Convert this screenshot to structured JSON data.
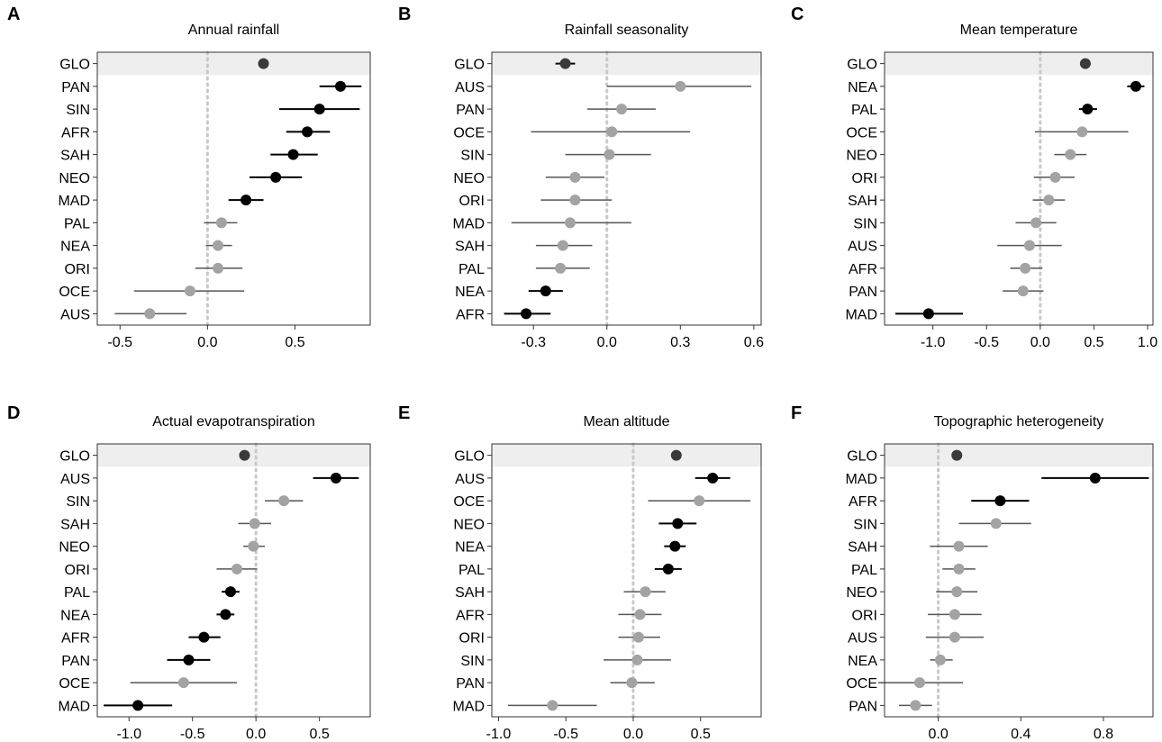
{
  "colors": {
    "significant": "#000000",
    "nonsignificant": "#a3a3a3",
    "global": "#3a3a3a",
    "band": "#eeeeee",
    "zero_line": "#c8c8c8"
  },
  "chart_data": [
    {
      "panel": "A",
      "type": "scatter",
      "title": "Annual rainfall",
      "xlabel": "",
      "ylabel": "",
      "xlim": [
        -0.63,
        0.93
      ],
      "xticks": [
        -0.5,
        0.0,
        0.5
      ],
      "xtick_labels": [
        "-0.5",
        "0.0",
        "0.5"
      ],
      "points": [
        {
          "label": "GLO",
          "est": 0.32,
          "lo": 0.29,
          "hi": 0.35,
          "sig": true,
          "global": true
        },
        {
          "label": "PAN",
          "est": 0.76,
          "lo": 0.64,
          "hi": 0.88,
          "sig": true
        },
        {
          "label": "SIN",
          "est": 0.64,
          "lo": 0.41,
          "hi": 0.87,
          "sig": true
        },
        {
          "label": "AFR",
          "est": 0.57,
          "lo": 0.45,
          "hi": 0.7,
          "sig": true
        },
        {
          "label": "SAH",
          "est": 0.49,
          "lo": 0.36,
          "hi": 0.63,
          "sig": true
        },
        {
          "label": "NEO",
          "est": 0.39,
          "lo": 0.24,
          "hi": 0.54,
          "sig": true
        },
        {
          "label": "MAD",
          "est": 0.22,
          "lo": 0.12,
          "hi": 0.32,
          "sig": true
        },
        {
          "label": "PAL",
          "est": 0.08,
          "lo": -0.02,
          "hi": 0.17,
          "sig": false
        },
        {
          "label": "NEA",
          "est": 0.06,
          "lo": -0.01,
          "hi": 0.14,
          "sig": false
        },
        {
          "label": "ORI",
          "est": 0.06,
          "lo": -0.07,
          "hi": 0.2,
          "sig": false
        },
        {
          "label": "OCE",
          "est": -0.1,
          "lo": -0.42,
          "hi": 0.21,
          "sig": false
        },
        {
          "label": "AUS",
          "est": -0.33,
          "lo": -0.53,
          "hi": -0.12,
          "sig": false
        }
      ]
    },
    {
      "panel": "B",
      "type": "scatter",
      "title": "Rainfall seasonality",
      "xlabel": "",
      "ylabel": "",
      "xlim": [
        -0.47,
        0.63
      ],
      "xticks": [
        -0.3,
        0.0,
        0.3,
        0.6
      ],
      "xtick_labels": [
        "-0.3",
        "0.0",
        "0.3",
        "0.6"
      ],
      "points": [
        {
          "label": "GLO",
          "est": -0.17,
          "lo": -0.21,
          "hi": -0.13,
          "sig": true,
          "global": true
        },
        {
          "label": "AUS",
          "est": 0.3,
          "lo": 0.0,
          "hi": 0.59,
          "sig": false
        },
        {
          "label": "PAN",
          "est": 0.06,
          "lo": -0.08,
          "hi": 0.2,
          "sig": false
        },
        {
          "label": "OCE",
          "est": 0.02,
          "lo": -0.31,
          "hi": 0.34,
          "sig": false
        },
        {
          "label": "SIN",
          "est": 0.01,
          "lo": -0.17,
          "hi": 0.18,
          "sig": false
        },
        {
          "label": "NEO",
          "est": -0.13,
          "lo": -0.25,
          "hi": -0.01,
          "sig": false
        },
        {
          "label": "ORI",
          "est": -0.13,
          "lo": -0.27,
          "hi": 0.02,
          "sig": false
        },
        {
          "label": "MAD",
          "est": -0.15,
          "lo": -0.39,
          "hi": 0.1,
          "sig": false
        },
        {
          "label": "SAH",
          "est": -0.18,
          "lo": -0.29,
          "hi": -0.06,
          "sig": false
        },
        {
          "label": "PAL",
          "est": -0.19,
          "lo": -0.29,
          "hi": -0.07,
          "sig": false
        },
        {
          "label": "NEA",
          "est": -0.25,
          "lo": -0.32,
          "hi": -0.18,
          "sig": true
        },
        {
          "label": "AFR",
          "est": -0.33,
          "lo": -0.42,
          "hi": -0.23,
          "sig": true
        }
      ]
    },
    {
      "panel": "C",
      "type": "scatter",
      "title": "Mean temperature",
      "xlabel": "",
      "ylabel": "",
      "xlim": [
        -1.45,
        1.05
      ],
      "xticks": [
        -1.0,
        -0.5,
        0.0,
        0.5,
        1.0
      ],
      "xtick_labels": [
        "-1.0",
        "-0.5",
        "0.0",
        "0.5",
        "1.0"
      ],
      "points": [
        {
          "label": "GLO",
          "est": 0.42,
          "lo": 0.38,
          "hi": 0.46,
          "sig": true,
          "global": true
        },
        {
          "label": "NEA",
          "est": 0.89,
          "lo": 0.81,
          "hi": 0.97,
          "sig": true
        },
        {
          "label": "PAL",
          "est": 0.44,
          "lo": 0.36,
          "hi": 0.53,
          "sig": true
        },
        {
          "label": "OCE",
          "est": 0.39,
          "lo": -0.05,
          "hi": 0.82,
          "sig": false
        },
        {
          "label": "NEO",
          "est": 0.28,
          "lo": 0.13,
          "hi": 0.43,
          "sig": false
        },
        {
          "label": "ORI",
          "est": 0.14,
          "lo": -0.06,
          "hi": 0.32,
          "sig": false
        },
        {
          "label": "SAH",
          "est": 0.08,
          "lo": -0.07,
          "hi": 0.23,
          "sig": false
        },
        {
          "label": "SIN",
          "est": -0.04,
          "lo": -0.23,
          "hi": 0.15,
          "sig": false
        },
        {
          "label": "AUS",
          "est": -0.1,
          "lo": -0.4,
          "hi": 0.2,
          "sig": false
        },
        {
          "label": "AFR",
          "est": -0.14,
          "lo": -0.28,
          "hi": 0.02,
          "sig": false
        },
        {
          "label": "PAN",
          "est": -0.16,
          "lo": -0.35,
          "hi": 0.03,
          "sig": false
        },
        {
          "label": "MAD",
          "est": -1.04,
          "lo": -1.35,
          "hi": -0.72,
          "sig": true
        }
      ]
    },
    {
      "panel": "D",
      "type": "scatter",
      "title": "Actual evapotranspiration",
      "xlabel": "",
      "ylabel": "",
      "xlim": [
        -1.25,
        0.9
      ],
      "xticks": [
        -1.0,
        -0.5,
        0.0,
        0.5
      ],
      "xtick_labels": [
        "-1.0",
        "-0.5",
        "0.0",
        "0.5"
      ],
      "points": [
        {
          "label": "GLO",
          "est": -0.09,
          "lo": -0.11,
          "hi": -0.07,
          "sig": false,
          "global": true
        },
        {
          "label": "AUS",
          "est": 0.63,
          "lo": 0.45,
          "hi": 0.81,
          "sig": true
        },
        {
          "label": "SIN",
          "est": 0.22,
          "lo": 0.07,
          "hi": 0.37,
          "sig": false
        },
        {
          "label": "SAH",
          "est": -0.01,
          "lo": -0.14,
          "hi": 0.12,
          "sig": false
        },
        {
          "label": "NEO",
          "est": -0.02,
          "lo": -0.1,
          "hi": 0.07,
          "sig": false
        },
        {
          "label": "ORI",
          "est": -0.15,
          "lo": -0.31,
          "hi": 0.01,
          "sig": false
        },
        {
          "label": "PAL",
          "est": -0.2,
          "lo": -0.27,
          "hi": -0.13,
          "sig": true
        },
        {
          "label": "NEA",
          "est": -0.24,
          "lo": -0.31,
          "hi": -0.17,
          "sig": true
        },
        {
          "label": "AFR",
          "est": -0.41,
          "lo": -0.53,
          "hi": -0.28,
          "sig": true
        },
        {
          "label": "PAN",
          "est": -0.53,
          "lo": -0.7,
          "hi": -0.36,
          "sig": true
        },
        {
          "label": "OCE",
          "est": -0.57,
          "lo": -0.99,
          "hi": -0.15,
          "sig": false
        },
        {
          "label": "MAD",
          "est": -0.93,
          "lo": -1.2,
          "hi": -0.66,
          "sig": true
        }
      ]
    },
    {
      "panel": "E",
      "type": "scatter",
      "title": "Mean altitude",
      "xlabel": "",
      "ylabel": "",
      "xlim": [
        -1.05,
        0.95
      ],
      "xticks": [
        -1.0,
        -0.5,
        0.0,
        0.5
      ],
      "xtick_labels": [
        "-1.0",
        "-0.5",
        "0.0",
        "0.5"
      ],
      "points": [
        {
          "label": "GLO",
          "est": 0.32,
          "lo": 0.29,
          "hi": 0.35,
          "sig": true,
          "global": true
        },
        {
          "label": "AUS",
          "est": 0.59,
          "lo": 0.46,
          "hi": 0.72,
          "sig": true
        },
        {
          "label": "OCE",
          "est": 0.49,
          "lo": 0.11,
          "hi": 0.87,
          "sig": false
        },
        {
          "label": "NEO",
          "est": 0.33,
          "lo": 0.19,
          "hi": 0.47,
          "sig": true
        },
        {
          "label": "NEA",
          "est": 0.31,
          "lo": 0.23,
          "hi": 0.39,
          "sig": true
        },
        {
          "label": "PAL",
          "est": 0.26,
          "lo": 0.16,
          "hi": 0.36,
          "sig": true
        },
        {
          "label": "SAH",
          "est": 0.09,
          "lo": -0.07,
          "hi": 0.24,
          "sig": false
        },
        {
          "label": "AFR",
          "est": 0.05,
          "lo": -0.11,
          "hi": 0.21,
          "sig": false
        },
        {
          "label": "ORI",
          "est": 0.04,
          "lo": -0.11,
          "hi": 0.2,
          "sig": false
        },
        {
          "label": "SIN",
          "est": 0.03,
          "lo": -0.22,
          "hi": 0.28,
          "sig": false
        },
        {
          "label": "PAN",
          "est": -0.01,
          "lo": -0.17,
          "hi": 0.16,
          "sig": false
        },
        {
          "label": "MAD",
          "est": -0.6,
          "lo": -0.93,
          "hi": -0.27,
          "sig": false
        }
      ]
    },
    {
      "panel": "F",
      "type": "scatter",
      "title": "Topographic heterogeneity",
      "xlabel": "",
      "ylabel": "",
      "xlim": [
        -0.26,
        1.04
      ],
      "xticks": [
        0.0,
        0.4,
        0.8
      ],
      "xtick_labels": [
        "0.0",
        "0.4",
        "0.8"
      ],
      "points": [
        {
          "label": "GLO",
          "est": 0.09,
          "lo": 0.07,
          "hi": 0.11,
          "sig": true,
          "global": true
        },
        {
          "label": "MAD",
          "est": 0.76,
          "lo": 0.5,
          "hi": 1.02,
          "sig": true
        },
        {
          "label": "AFR",
          "est": 0.3,
          "lo": 0.16,
          "hi": 0.44,
          "sig": true
        },
        {
          "label": "SIN",
          "est": 0.28,
          "lo": 0.1,
          "hi": 0.45,
          "sig": false
        },
        {
          "label": "SAH",
          "est": 0.1,
          "lo": -0.04,
          "hi": 0.24,
          "sig": false
        },
        {
          "label": "PAL",
          "est": 0.1,
          "lo": 0.02,
          "hi": 0.18,
          "sig": false
        },
        {
          "label": "NEO",
          "est": 0.09,
          "lo": -0.01,
          "hi": 0.19,
          "sig": false
        },
        {
          "label": "ORI",
          "est": 0.08,
          "lo": -0.05,
          "hi": 0.21,
          "sig": false
        },
        {
          "label": "AUS",
          "est": 0.08,
          "lo": -0.06,
          "hi": 0.22,
          "sig": false
        },
        {
          "label": "NEA",
          "est": 0.01,
          "lo": -0.04,
          "hi": 0.07,
          "sig": false
        },
        {
          "label": "OCE",
          "est": -0.09,
          "lo": -0.29,
          "hi": 0.12,
          "sig": false
        },
        {
          "label": "PAN",
          "est": -0.11,
          "lo": -0.19,
          "hi": -0.03,
          "sig": false
        }
      ]
    }
  ]
}
